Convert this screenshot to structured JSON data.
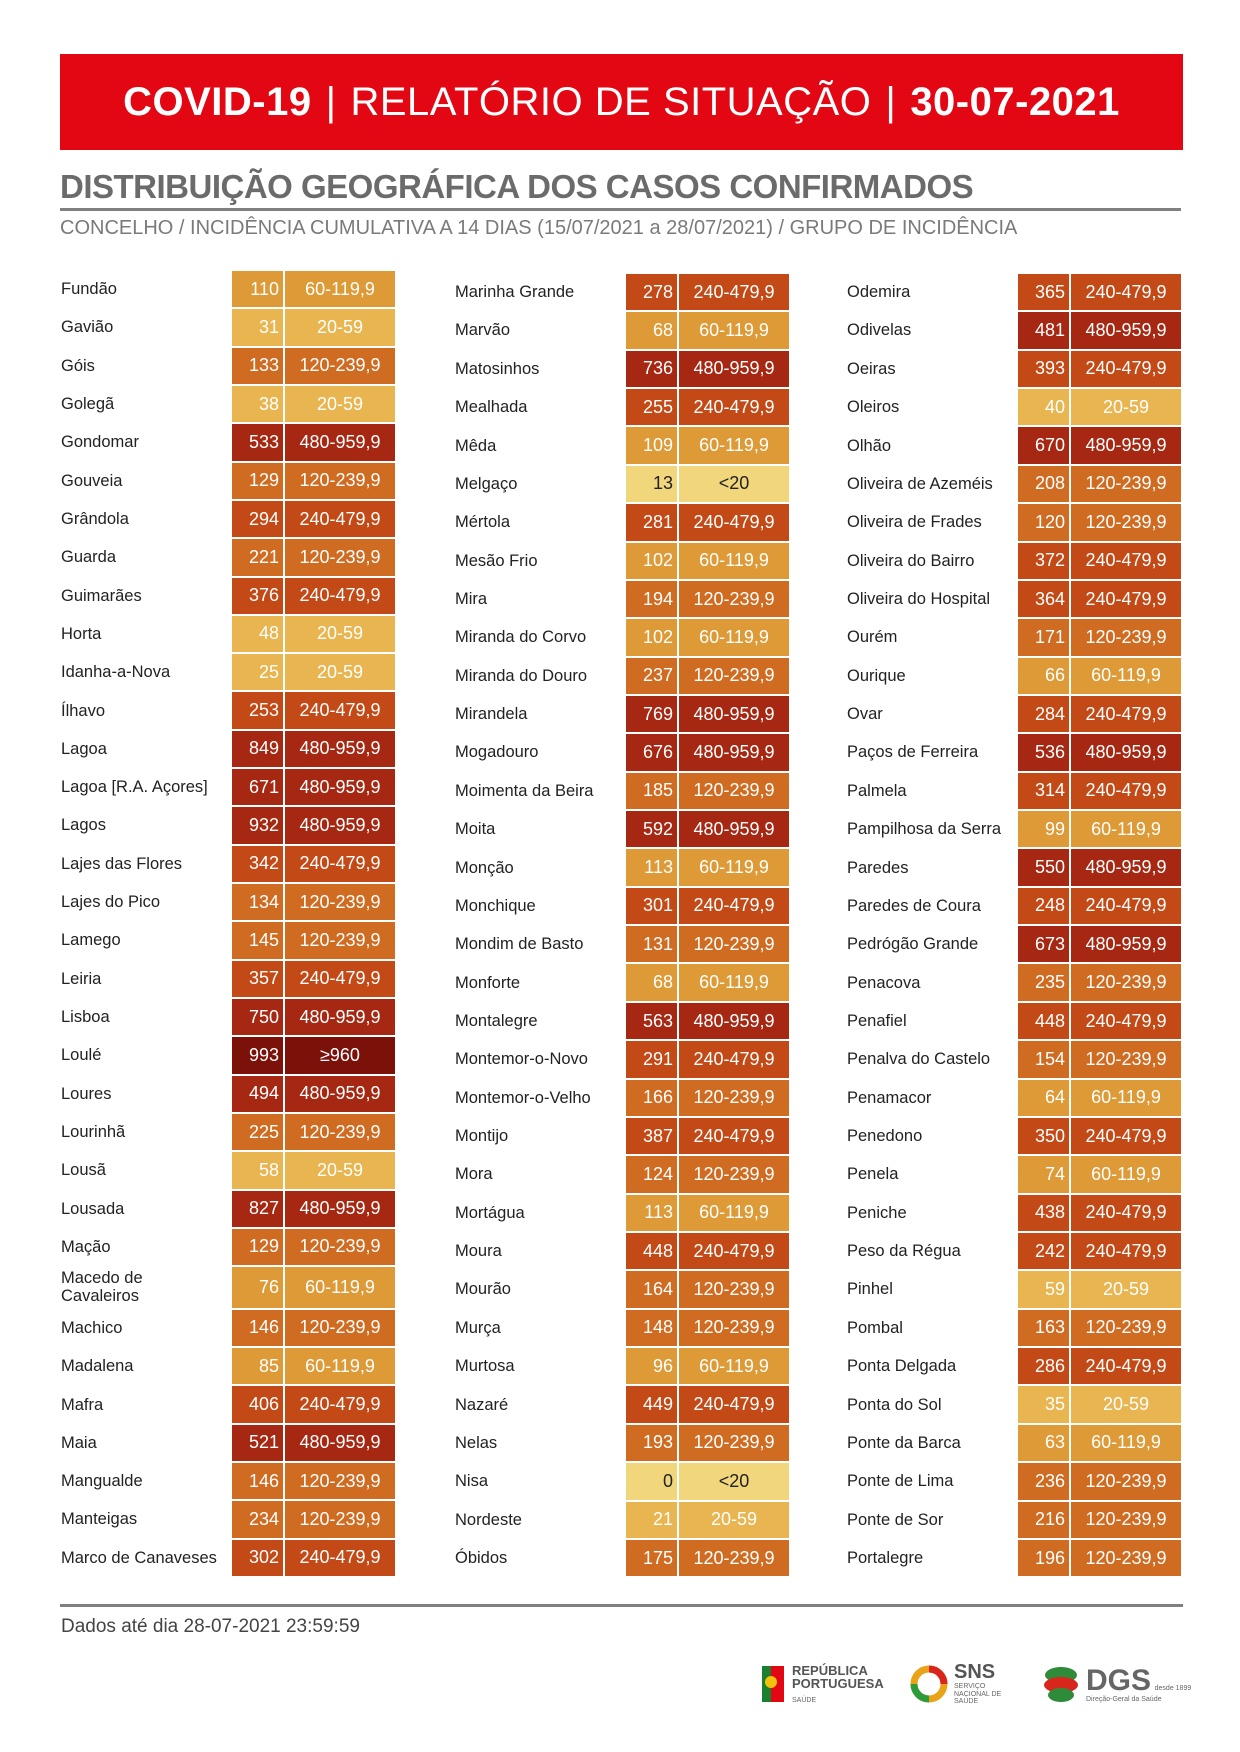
{
  "header": {
    "part1": "COVID-19",
    "sep": "|",
    "part2": "RELATÓRIO DE SITUAÇÃO",
    "part3": "30-07-2021"
  },
  "title": "DISTRIBUIÇÃO GEOGRÁFICA DOS CASOS CONFIRMADOS",
  "subtitle": "CONCELHO / INCIDÊNCIA CUMULATIVA A 14 DIAS (15/07/2021 a 28/07/2021) / GRUPO DE INCIDÊNCIA",
  "colors": {
    "<20": "#f2d67c",
    "20-59": "#e8b550",
    "60-119,9": "#dd9a36",
    "120-239,9": "#d06c22",
    "240-479,9": "#c34a17",
    "480-959,9": "#a62812",
    "≥960": "#7b1109"
  },
  "columns": [
    [
      [
        "Fundão",
        "110",
        "60-119,9"
      ],
      [
        "Gavião",
        "31",
        "20-59"
      ],
      [
        "Góis",
        "133",
        "120-239,9"
      ],
      [
        "Golegã",
        "38",
        "20-59"
      ],
      [
        "Gondomar",
        "533",
        "480-959,9"
      ],
      [
        "Gouveia",
        "129",
        "120-239,9"
      ],
      [
        "Grândola",
        "294",
        "240-479,9"
      ],
      [
        "Guarda",
        "221",
        "120-239,9"
      ],
      [
        "Guimarães",
        "376",
        "240-479,9"
      ],
      [
        "Horta",
        "48",
        "20-59"
      ],
      [
        "Idanha-a-Nova",
        "25",
        "20-59"
      ],
      [
        "Ílhavo",
        "253",
        "240-479,9"
      ],
      [
        "Lagoa",
        "849",
        "480-959,9"
      ],
      [
        "Lagoa [R.A. Açores]",
        "671",
        "480-959,9"
      ],
      [
        "Lagos",
        "932",
        "480-959,9"
      ],
      [
        "Lajes das Flores",
        "342",
        "240-479,9"
      ],
      [
        "Lajes do Pico",
        "134",
        "120-239,9"
      ],
      [
        "Lamego",
        "145",
        "120-239,9"
      ],
      [
        "Leiria",
        "357",
        "240-479,9"
      ],
      [
        "Lisboa",
        "750",
        "480-959,9"
      ],
      [
        "Loulé",
        "993",
        "≥960"
      ],
      [
        "Loures",
        "494",
        "480-959,9"
      ],
      [
        "Lourinhã",
        "225",
        "120-239,9"
      ],
      [
        "Lousã",
        "58",
        "20-59"
      ],
      [
        "Lousada",
        "827",
        "480-959,9"
      ],
      [
        "Mação",
        "129",
        "120-239,9"
      ],
      [
        "Macedo de Cavaleiros",
        "76",
        "60-119,9"
      ],
      [
        "Machico",
        "146",
        "120-239,9"
      ],
      [
        "Madalena",
        "85",
        "60-119,9"
      ],
      [
        "Mafra",
        "406",
        "240-479,9"
      ],
      [
        "Maia",
        "521",
        "480-959,9"
      ],
      [
        "Mangualde",
        "146",
        "120-239,9"
      ],
      [
        "Manteigas",
        "234",
        "120-239,9"
      ],
      [
        "Marco de Canaveses",
        "302",
        "240-479,9"
      ]
    ],
    [
      [
        "Marinha Grande",
        "278",
        "240-479,9"
      ],
      [
        "Marvão",
        "68",
        "60-119,9"
      ],
      [
        "Matosinhos",
        "736",
        "480-959,9"
      ],
      [
        "Mealhada",
        "255",
        "240-479,9"
      ],
      [
        "Mêda",
        "109",
        "60-119,9"
      ],
      [
        "Melgaço",
        "13",
        "<20"
      ],
      [
        "Mértola",
        "281",
        "240-479,9"
      ],
      [
        "Mesão Frio",
        "102",
        "60-119,9"
      ],
      [
        "Mira",
        "194",
        "120-239,9"
      ],
      [
        "Miranda do Corvo",
        "102",
        "60-119,9"
      ],
      [
        "Miranda do Douro",
        "237",
        "120-239,9"
      ],
      [
        "Mirandela",
        "769",
        "480-959,9"
      ],
      [
        "Mogadouro",
        "676",
        "480-959,9"
      ],
      [
        "Moimenta da Beira",
        "185",
        "120-239,9"
      ],
      [
        "Moita",
        "592",
        "480-959,9"
      ],
      [
        "Monção",
        "113",
        "60-119,9"
      ],
      [
        "Monchique",
        "301",
        "240-479,9"
      ],
      [
        "Mondim de Basto",
        "131",
        "120-239,9"
      ],
      [
        "Monforte",
        "68",
        "60-119,9"
      ],
      [
        "Montalegre",
        "563",
        "480-959,9"
      ],
      [
        "Montemor-o-Novo",
        "291",
        "240-479,9"
      ],
      [
        "Montemor-o-Velho",
        "166",
        "120-239,9"
      ],
      [
        "Montijo",
        "387",
        "240-479,9"
      ],
      [
        "Mora",
        "124",
        "120-239,9"
      ],
      [
        "Mortágua",
        "113",
        "60-119,9"
      ],
      [
        "Moura",
        "448",
        "240-479,9"
      ],
      [
        "Mourão",
        "164",
        "120-239,9"
      ],
      [
        "Murça",
        "148",
        "120-239,9"
      ],
      [
        "Murtosa",
        "96",
        "60-119,9"
      ],
      [
        "Nazaré",
        "449",
        "240-479,9"
      ],
      [
        "Nelas",
        "193",
        "120-239,9"
      ],
      [
        "Nisa",
        "0",
        "<20"
      ],
      [
        "Nordeste",
        "21",
        "20-59"
      ],
      [
        "Óbidos",
        "175",
        "120-239,9"
      ]
    ],
    [
      [
        "Odemira",
        "365",
        "240-479,9"
      ],
      [
        "Odivelas",
        "481",
        "480-959,9"
      ],
      [
        "Oeiras",
        "393",
        "240-479,9"
      ],
      [
        "Oleiros",
        "40",
        "20-59"
      ],
      [
        "Olhão",
        "670",
        "480-959,9"
      ],
      [
        "Oliveira de Azeméis",
        "208",
        "120-239,9"
      ],
      [
        "Oliveira de Frades",
        "120",
        "120-239,9"
      ],
      [
        "Oliveira do Bairro",
        "372",
        "240-479,9"
      ],
      [
        "Oliveira do Hospital",
        "364",
        "240-479,9"
      ],
      [
        "Ourém",
        "171",
        "120-239,9"
      ],
      [
        "Ourique",
        "66",
        "60-119,9"
      ],
      [
        "Ovar",
        "284",
        "240-479,9"
      ],
      [
        "Paços de Ferreira",
        "536",
        "480-959,9"
      ],
      [
        "Palmela",
        "314",
        "240-479,9"
      ],
      [
        "Pampilhosa da Serra",
        "99",
        "60-119,9"
      ],
      [
        "Paredes",
        "550",
        "480-959,9"
      ],
      [
        "Paredes de Coura",
        "248",
        "240-479,9"
      ],
      [
        "Pedrógão Grande",
        "673",
        "480-959,9"
      ],
      [
        "Penacova",
        "235",
        "120-239,9"
      ],
      [
        "Penafiel",
        "448",
        "240-479,9"
      ],
      [
        "Penalva do Castelo",
        "154",
        "120-239,9"
      ],
      [
        "Penamacor",
        "64",
        "60-119,9"
      ],
      [
        "Penedono",
        "350",
        "240-479,9"
      ],
      [
        "Penela",
        "74",
        "60-119,9"
      ],
      [
        "Peniche",
        "438",
        "240-479,9"
      ],
      [
        "Peso da Régua",
        "242",
        "240-479,9"
      ],
      [
        "Pinhel",
        "59",
        "20-59"
      ],
      [
        "Pombal",
        "163",
        "120-239,9"
      ],
      [
        "Ponta Delgada",
        "286",
        "240-479,9"
      ],
      [
        "Ponta do Sol",
        "35",
        "20-59"
      ],
      [
        "Ponte da Barca",
        "63",
        "60-119,9"
      ],
      [
        "Ponte de Lima",
        "236",
        "120-239,9"
      ],
      [
        "Ponte de Sor",
        "216",
        "120-239,9"
      ],
      [
        "Portalegre",
        "196",
        "120-239,9"
      ]
    ]
  ],
  "footer": {
    "data_note": "Dados até dia 28-07-2021 23:59:59"
  },
  "logos": {
    "republica": "REPÚBLICA PORTUGUESA",
    "republica_sub": "SAÚDE",
    "sns": "SNS",
    "sns_sub": "SERVIÇO NACIONAL DE SAÚDE",
    "dgs": "DGS",
    "dgs_sub": "Direção-Geral da Saúde",
    "dgs_since": "desde 1899"
  }
}
